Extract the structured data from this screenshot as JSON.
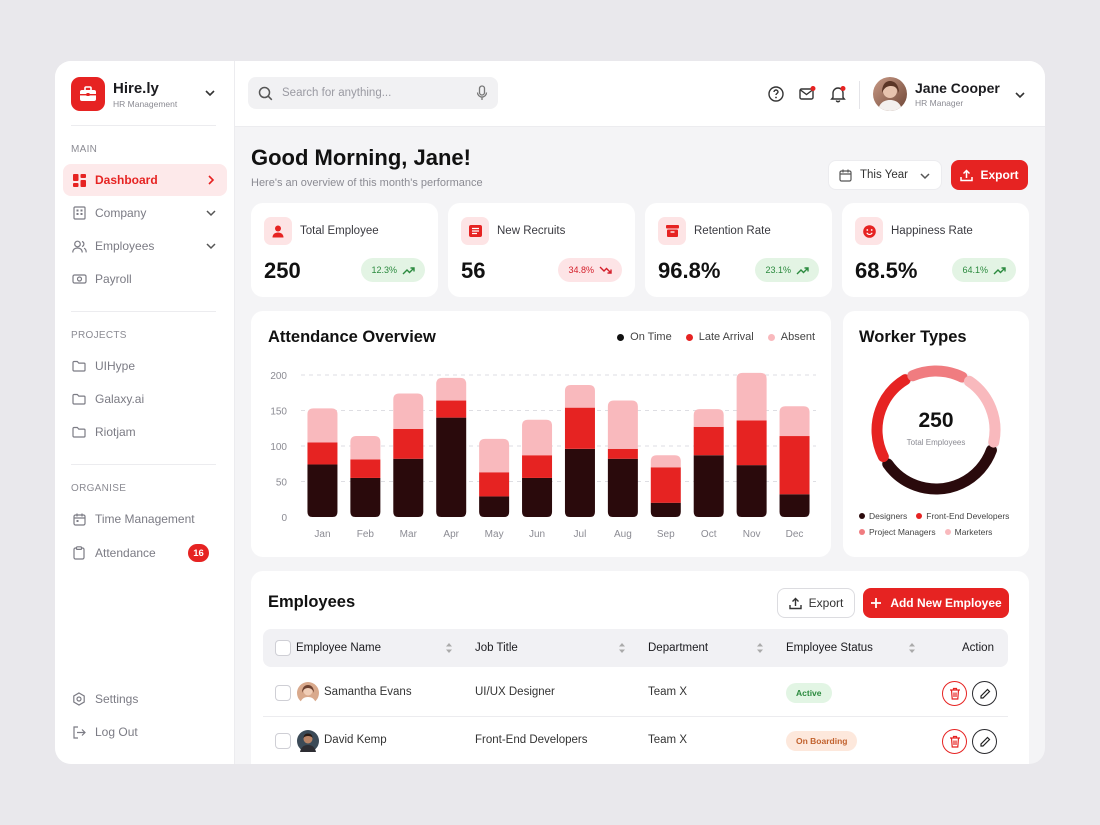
{
  "brand": {
    "name": "Hire.ly",
    "subtitle": "HR Management"
  },
  "sidebar": {
    "main_title": "MAIN",
    "main_items": [
      {
        "label": "Dashboard",
        "icon": "grid-icon",
        "active": true
      },
      {
        "label": "Company",
        "icon": "building-icon"
      },
      {
        "label": "Employees",
        "icon": "users-icon"
      },
      {
        "label": "Payroll",
        "icon": "money-icon"
      }
    ],
    "projects_title": "PROJECTS",
    "projects": [
      {
        "label": "UIHype"
      },
      {
        "label": "Galaxy.ai"
      },
      {
        "label": "Riotjam"
      }
    ],
    "organise_title": "ORGANISE",
    "organise": [
      {
        "label": "Time Management",
        "icon": "calendar-icon"
      },
      {
        "label": "Attendance",
        "icon": "clipboard-icon",
        "badge": "16"
      }
    ],
    "bottom": [
      {
        "label": "Settings",
        "icon": "settings-icon"
      },
      {
        "label": "Log Out",
        "icon": "logout-icon"
      }
    ]
  },
  "search": {
    "placeholder": "Search for anything..."
  },
  "user": {
    "name": "Jane Cooper",
    "role": "HR Manager"
  },
  "header": {
    "greeting": "Good Morning, Jane!",
    "subtitle": "Here's an overview of this month's performance",
    "period": "This Year",
    "export_label": "Export"
  },
  "stats": [
    {
      "label": "Total Employee",
      "value": "250",
      "change": "12.3%",
      "trend": "up",
      "icon": "user-icon"
    },
    {
      "label": "New Recruits",
      "value": "56",
      "change": "34.8%",
      "trend": "down",
      "icon": "list-icon"
    },
    {
      "label": "Retention Rate",
      "value": "96.8%",
      "change": "23.1%",
      "trend": "up",
      "icon": "archive-icon"
    },
    {
      "label": "Happiness Rate",
      "value": "68.5%",
      "change": "64.1%",
      "trend": "up",
      "icon": "smile-icon"
    }
  ],
  "colors": {
    "accent": "#e62322",
    "dark": "#2a0a0c",
    "light": "#f9b9bd",
    "mid": "#f07c80"
  },
  "chart_data": [
    {
      "type": "bar",
      "title": "Attendance Overview",
      "stacked": true,
      "categories": [
        "Jan",
        "Feb",
        "Mar",
        "Apr",
        "May",
        "Jun",
        "Jul",
        "Aug",
        "Sep",
        "Oct",
        "Nov",
        "Dec"
      ],
      "series": [
        {
          "name": "On Time",
          "color": "#2a0a0c",
          "values": [
            74,
            55,
            82,
            140,
            29,
            55,
            96,
            82,
            20,
            87,
            73,
            32
          ]
        },
        {
          "name": "Late Arrival",
          "color": "#e62322",
          "values": [
            31,
            26,
            42,
            24,
            34,
            32,
            58,
            14,
            50,
            40,
            63,
            82
          ]
        },
        {
          "name": "Absent",
          "color": "#f9b9bd",
          "values": [
            48,
            33,
            50,
            32,
            47,
            50,
            32,
            68,
            17,
            25,
            67,
            42
          ]
        }
      ],
      "yticks": [
        0,
        50,
        100,
        150,
        200
      ],
      "ylim": [
        0,
        200
      ],
      "grid": true,
      "legend": "top-right"
    },
    {
      "type": "pie",
      "title": "Worker Types",
      "donut": true,
      "center_value": "250",
      "center_label": "Total Employees",
      "labels": [
        "Designers",
        "Front-End Developers",
        "Project Managers",
        "Marketers"
      ],
      "values": [
        37,
        26,
        16,
        21
      ],
      "colors": [
        "#2a0a0c",
        "#e62322",
        "#f07c80",
        "#f9b9bd"
      ],
      "legend": "bottom"
    }
  ],
  "employees": {
    "title": "Employees",
    "export_label": "Export",
    "add_label": "Add New Employee",
    "columns": [
      "Employee Name",
      "Job Title",
      "Department",
      "Employee Status",
      "Action"
    ],
    "rows": [
      {
        "name": "Samantha Evans",
        "job": "UI/UX Designer",
        "dept": "Team X",
        "status": "Active"
      },
      {
        "name": "David Kemp",
        "job": "Front-End Developers",
        "dept": "Team X",
        "status": "On Boarding"
      }
    ]
  }
}
